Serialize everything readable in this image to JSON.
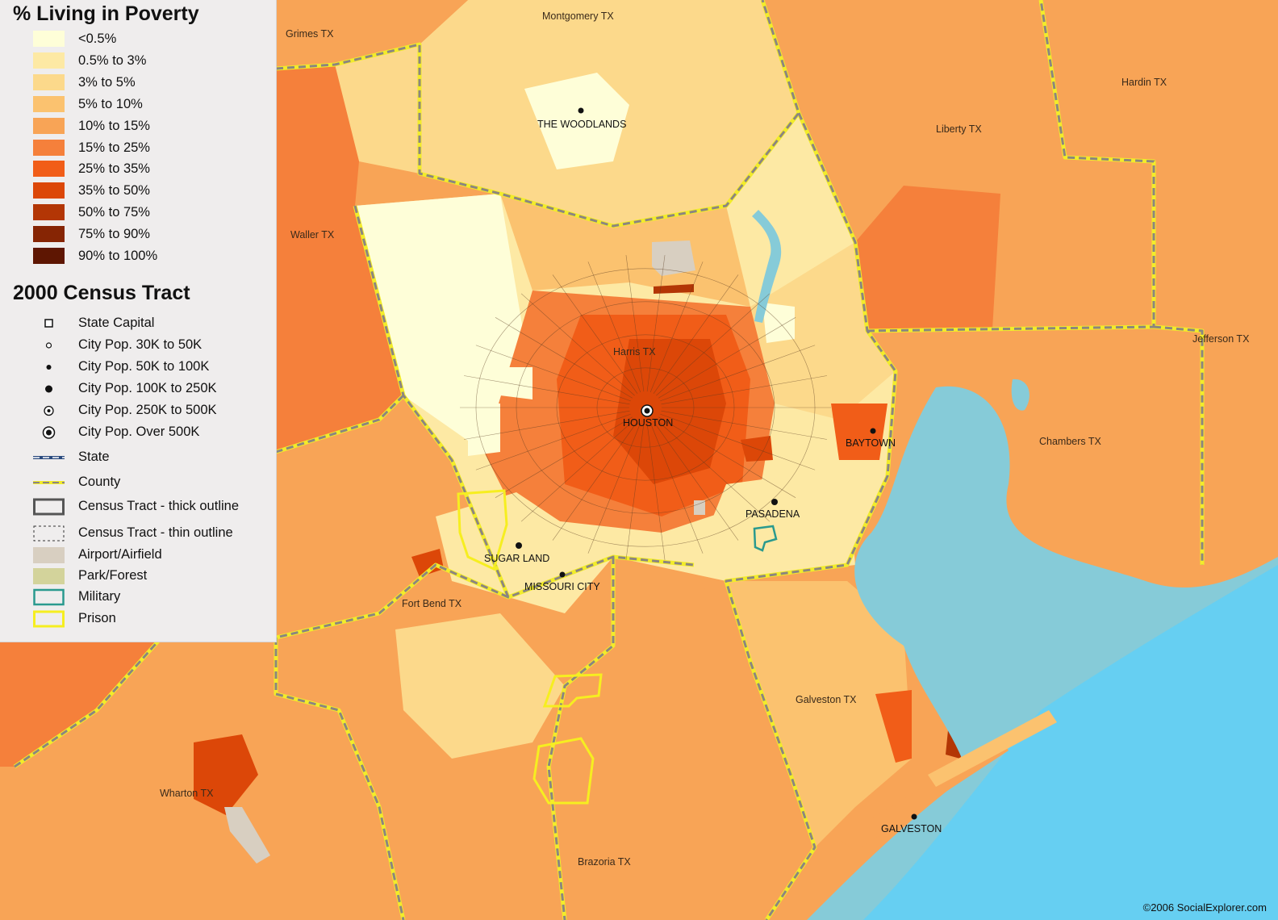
{
  "legend": {
    "poverty_title": "% Living in Poverty",
    "poverty_classes": [
      {
        "label": "<0.5%",
        "color": "#fefed8"
      },
      {
        "label": "0.5% to 3%",
        "color": "#fde9a4"
      },
      {
        "label": "3% to 5%",
        "color": "#fcd98b"
      },
      {
        "label": "5% to 10%",
        "color": "#fbc26f"
      },
      {
        "label": "10% to 15%",
        "color": "#f8a456"
      },
      {
        "label": "15% to 25%",
        "color": "#f5803b"
      },
      {
        "label": "25% to 35%",
        "color": "#f15d18"
      },
      {
        "label": "35% to 50%",
        "color": "#dc4708"
      },
      {
        "label": "50% to 75%",
        "color": "#b33605"
      },
      {
        "label": "75% to 90%",
        "color": "#862504"
      },
      {
        "label": "90% to 100%",
        "color": "#5e1602"
      }
    ],
    "tract_title": "2000 Census Tract",
    "symbols": [
      {
        "label": "State Capital",
        "icon": "state-capital-icon"
      },
      {
        "label": "City Pop. 30K to 50K",
        "icon": "city-30k-icon"
      },
      {
        "label": "City Pop. 50K to 100K",
        "icon": "city-50k-icon"
      },
      {
        "label": "City Pop. 100K to 250K",
        "icon": "city-100k-icon"
      },
      {
        "label": "City Pop. 250K to 500K",
        "icon": "city-250k-icon"
      },
      {
        "label": "City Pop. Over 500K",
        "icon": "city-500k-icon"
      },
      {
        "label": "State",
        "icon": "state-boundary-icon"
      },
      {
        "label": "County",
        "icon": "county-boundary-icon"
      },
      {
        "label": "Census Tract - thick outline",
        "icon": "tract-thick-icon"
      },
      {
        "label": "Census Tract - thin outline",
        "icon": "tract-thin-icon"
      },
      {
        "label": "Airport/Airfield",
        "icon": "airport-swatch",
        "color": "#d8cfc1"
      },
      {
        "label": "Park/Forest",
        "icon": "park-swatch",
        "color": "#d3d39b"
      },
      {
        "label": "Military",
        "icon": "military-swatch",
        "color": "#2a9a8e"
      },
      {
        "label": "Prison",
        "icon": "prison-swatch",
        "color": "#f6ee20"
      }
    ]
  },
  "colors": {
    "water": "#86cbd8",
    "gulf": "#66cff2",
    "county_line": "#8c8580",
    "county_yellow": "#f2ec2a"
  },
  "cities": [
    {
      "name": "THE WOODLANDS"
    },
    {
      "name": "HOUSTON"
    },
    {
      "name": "BAYTOWN"
    },
    {
      "name": "PASADENA"
    },
    {
      "name": "SUGAR LAND"
    },
    {
      "name": "MISSOURI CITY"
    },
    {
      "name": "GALVESTON"
    }
  ],
  "counties": [
    {
      "name": "Montgomery TX"
    },
    {
      "name": "Grimes TX"
    },
    {
      "name": "Hardin TX"
    },
    {
      "name": "Liberty TX"
    },
    {
      "name": "Waller TX"
    },
    {
      "name": "Harris TX"
    },
    {
      "name": "Jefferson TX"
    },
    {
      "name": "Chambers TX"
    },
    {
      "name": "Fort Bend TX"
    },
    {
      "name": "Wharton TX"
    },
    {
      "name": "Galveston TX"
    },
    {
      "name": "Brazoria TX"
    }
  ],
  "credit": "©2006 SocialExplorer.com"
}
